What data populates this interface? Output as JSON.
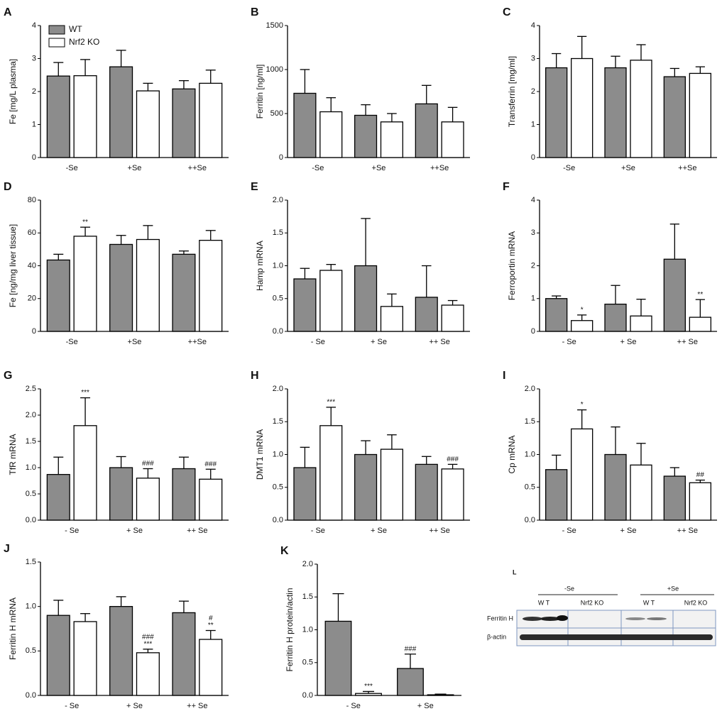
{
  "chart_data": [
    {
      "type": "bar",
      "panel": "A",
      "ylabel": "Fe [mg/L plasma]",
      "categories": [
        "-Se",
        "+Se",
        "++Se"
      ],
      "ylim": [
        0,
        4
      ],
      "yticks": [
        0,
        1,
        2,
        3,
        4
      ],
      "legend": "upper left",
      "series": [
        {
          "name": "WT",
          "color": "#8c8c8c",
          "values": [
            2.47,
            2.75,
            2.08
          ],
          "errors": [
            0.41,
            0.5,
            0.25
          ]
        },
        {
          "name": "Nrf2 KO",
          "color": "#ffffff",
          "values": [
            2.48,
            2.02,
            2.25
          ],
          "errors": [
            0.49,
            0.23,
            0.4
          ]
        }
      ]
    },
    {
      "type": "bar",
      "panel": "B",
      "ylabel": "Ferritin [ng/ml]",
      "categories": [
        "-Se",
        "+Se",
        "++Se"
      ],
      "ylim": [
        0,
        1500
      ],
      "yticks": [
        0,
        500,
        1000,
        1500
      ],
      "series": [
        {
          "color": "#8c8c8c",
          "values": [
            730,
            480,
            610
          ],
          "errors": [
            270,
            120,
            210
          ]
        },
        {
          "color": "#ffffff",
          "values": [
            520,
            405,
            405
          ],
          "errors": [
            160,
            95,
            165
          ]
        }
      ]
    },
    {
      "type": "bar",
      "panel": "C",
      "ylabel": "Transferrin [mg/ml]",
      "categories": [
        "-Se",
        "+Se",
        "++Se"
      ],
      "ylim": [
        0,
        4
      ],
      "yticks": [
        0,
        1,
        2,
        3,
        4
      ],
      "series": [
        {
          "color": "#8c8c8c",
          "values": [
            2.72,
            2.72,
            2.45
          ],
          "errors": [
            0.43,
            0.35,
            0.25
          ]
        },
        {
          "color": "#ffffff",
          "values": [
            3.0,
            2.95,
            2.55
          ],
          "errors": [
            0.67,
            0.47,
            0.2
          ]
        }
      ]
    },
    {
      "type": "bar",
      "panel": "D",
      "ylabel": "Fe [ng/mg liver tissue]",
      "categories": [
        "-Se",
        "+Se",
        "++Se"
      ],
      "ylim": [
        0,
        80
      ],
      "yticks": [
        0,
        20,
        40,
        60,
        80
      ],
      "series": [
        {
          "color": "#8c8c8c",
          "values": [
            43.5,
            53,
            47
          ],
          "errors": [
            3.5,
            5.5,
            2
          ]
        },
        {
          "color": "#ffffff",
          "values": [
            58,
            56,
            55.5
          ],
          "errors": [
            5.5,
            8.5,
            6
          ],
          "annotations": [
            [
              "**"
            ],
            null,
            null
          ]
        }
      ]
    },
    {
      "type": "bar",
      "panel": "E",
      "ylabel": "Hamp mRNA",
      "categories": [
        "- Se",
        "+ Se",
        "++ Se"
      ],
      "ylim": [
        0,
        2
      ],
      "yticks": [
        {
          "value": 0,
          "label": "0.0"
        },
        0.5,
        {
          "value": 1,
          "label": "1.0"
        },
        1.5,
        {
          "value": 2,
          "label": "2.0"
        }
      ],
      "series": [
        {
          "color": "#8c8c8c",
          "values": [
            0.8,
            1.0,
            0.52
          ],
          "errors": [
            0.16,
            0.72,
            0.48
          ]
        },
        {
          "color": "#ffffff",
          "values": [
            0.93,
            0.38,
            0.4
          ],
          "errors": [
            0.09,
            0.19,
            0.07
          ]
        }
      ]
    },
    {
      "type": "bar",
      "panel": "F",
      "ylabel": "Ferroportin mRNA",
      "categories": [
        "- Se",
        "+ Se",
        "++ Se"
      ],
      "ylim": [
        0,
        4
      ],
      "yticks": [
        0,
        1,
        2,
        3,
        4
      ],
      "series": [
        {
          "color": "#8c8c8c",
          "values": [
            1.0,
            0.83,
            2.2
          ],
          "errors": [
            0.08,
            0.57,
            1.07
          ]
        },
        {
          "color": "#ffffff",
          "values": [
            0.33,
            0.47,
            0.43
          ],
          "errors": [
            0.17,
            0.51,
            0.54
          ],
          "annotations": [
            [
              "*"
            ],
            null,
            [
              "**"
            ]
          ]
        }
      ]
    },
    {
      "type": "bar",
      "panel": "G",
      "ylabel": "TfR mRNA",
      "categories": [
        "- Se",
        "+ Se",
        "++ Se"
      ],
      "ylim": [
        0,
        2.5
      ],
      "yticks": [
        {
          "value": 0,
          "label": "0.0"
        },
        0.5,
        {
          "value": 1,
          "label": "1.0"
        },
        1.5,
        {
          "value": 2,
          "label": "2.0"
        },
        2.5
      ],
      "series": [
        {
          "color": "#8c8c8c",
          "values": [
            0.87,
            1.0,
            0.98
          ],
          "errors": [
            0.33,
            0.21,
            0.22
          ]
        },
        {
          "color": "#ffffff",
          "values": [
            1.8,
            0.8,
            0.78
          ],
          "errors": [
            0.53,
            0.18,
            0.19
          ],
          "annotations": [
            [
              "***"
            ],
            [
              "###"
            ],
            [
              "###"
            ]
          ]
        }
      ]
    },
    {
      "type": "bar",
      "panel": "H",
      "ylabel": "DMT1 mRNA",
      "categories": [
        "- Se",
        "+ Se",
        "++ Se"
      ],
      "ylim": [
        0,
        2
      ],
      "yticks": [
        {
          "value": 0,
          "label": "0.0"
        },
        0.5,
        {
          "value": 1,
          "label": "1.0"
        },
        1.5,
        {
          "value": 2,
          "label": "2.0"
        }
      ],
      "series": [
        {
          "color": "#8c8c8c",
          "values": [
            0.8,
            1.0,
            0.85
          ],
          "errors": [
            0.31,
            0.21,
            0.12
          ]
        },
        {
          "color": "#ffffff",
          "values": [
            1.44,
            1.08,
            0.78
          ],
          "errors": [
            0.28,
            0.22,
            0.07
          ],
          "annotations": [
            [
              "***"
            ],
            null,
            [
              "###"
            ]
          ]
        }
      ]
    },
    {
      "type": "bar",
      "panel": "I",
      "ylabel": "Cp mRNA",
      "categories": [
        "- Se",
        "+ Se",
        "++ Se"
      ],
      "ylim": [
        0,
        2
      ],
      "yticks": [
        {
          "value": 0,
          "label": "0.0"
        },
        0.5,
        {
          "value": 1,
          "label": "1.0"
        },
        1.5,
        {
          "value": 2,
          "label": "2.0"
        }
      ],
      "series": [
        {
          "color": "#8c8c8c",
          "values": [
            0.77,
            1.0,
            0.67
          ],
          "errors": [
            0.22,
            0.42,
            0.13
          ]
        },
        {
          "color": "#ffffff",
          "values": [
            1.39,
            0.84,
            0.57
          ],
          "errors": [
            0.29,
            0.33,
            0.04
          ],
          "annotations": [
            [
              "*"
            ],
            null,
            [
              "##"
            ]
          ]
        }
      ]
    },
    {
      "type": "bar",
      "panel": "J",
      "ylabel": "Ferritin H mRNA",
      "categories": [
        "- Se",
        "+ Se",
        "++ Se"
      ],
      "ylim": [
        0,
        1.5
      ],
      "yticks": [
        {
          "value": 0,
          "label": "0.0"
        },
        0.5,
        {
          "value": 1,
          "label": "1.0"
        },
        1.5
      ],
      "series": [
        {
          "color": "#8c8c8c",
          "values": [
            0.9,
            1.0,
            0.93
          ],
          "errors": [
            0.17,
            0.11,
            0.13
          ]
        },
        {
          "color": "#ffffff",
          "values": [
            0.83,
            0.48,
            0.63
          ],
          "errors": [
            0.09,
            0.04,
            0.1
          ],
          "annotations": [
            null,
            [
              "###",
              "***"
            ],
            [
              "#",
              "**"
            ]
          ]
        }
      ]
    },
    {
      "type": "bar",
      "panel": "K",
      "ylabel": "Ferritin H protein/actin",
      "categories": [
        "- Se",
        "+ Se"
      ],
      "ylim": [
        0,
        2
      ],
      "yticks": [
        {
          "value": 0,
          "label": "0.0"
        },
        0.5,
        {
          "value": 1,
          "label": "1.0"
        },
        1.5,
        {
          "value": 2,
          "label": "2.0"
        }
      ],
      "series": [
        {
          "color": "#8c8c8c",
          "values": [
            1.13,
            0.41
          ],
          "errors": [
            0.42,
            0.22
          ],
          "annotations": [
            null,
            [
              "###"
            ]
          ]
        },
        {
          "color": "#ffffff",
          "values": [
            0.03,
            0.01
          ],
          "errors": [
            0.03,
            0.01
          ],
          "annotations": [
            [
              "***"
            ],
            null
          ]
        }
      ]
    }
  ],
  "blot": {
    "panel": "L",
    "groups": [
      "-Se",
      "+Se"
    ],
    "lanes": [
      "W T",
      "Nrf2 KO",
      "W T",
      "Nrf2 KO"
    ],
    "rows": [
      "Ferritin H",
      "β-actin"
    ]
  }
}
